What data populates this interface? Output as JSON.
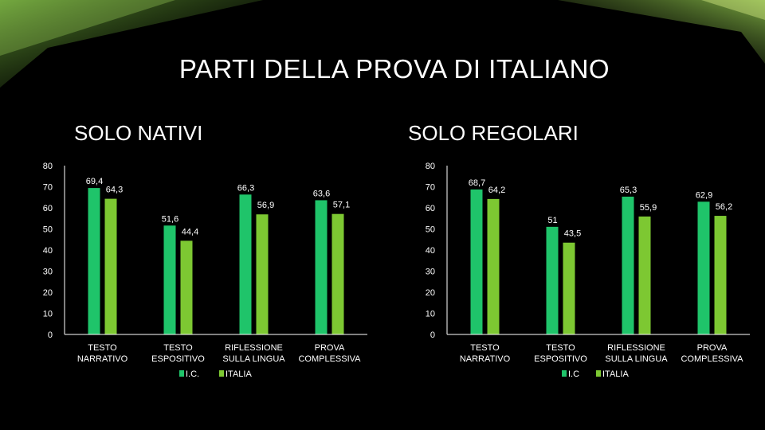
{
  "title": "PARTI DELLA PROVA DI ITALIANO",
  "colors": {
    "ic": "#1FC46A",
    "italia": "#7DC832",
    "background": "#000000"
  },
  "chart_data": [
    {
      "type": "bar",
      "title": "SOLO NATIVI",
      "categories": [
        [
          "TESTO",
          "NARRATIVO"
        ],
        [
          "TESTO",
          "ESPOSITIVO"
        ],
        [
          "RIFLESSIONE",
          "SULLA LINGUA"
        ],
        [
          "PROVA",
          "COMPLESSIVA"
        ]
      ],
      "series": [
        {
          "name": "I.C.",
          "values": [
            69.4,
            51.6,
            66.3,
            63.6
          ],
          "labels": [
            "69,4",
            "51,6",
            "66,3",
            "63,6"
          ]
        },
        {
          "name": "ITALIA",
          "values": [
            64.3,
            44.4,
            56.9,
            57.1
          ],
          "labels": [
            "64,3",
            "44,4",
            "56,9",
            "57,1"
          ]
        }
      ],
      "ylim": [
        0,
        80
      ],
      "yticks": [
        0,
        10,
        20,
        30,
        40,
        50,
        60,
        70,
        80
      ],
      "legend_position": "bottom",
      "grid": false
    },
    {
      "type": "bar",
      "title": "SOLO REGOLARI",
      "categories": [
        [
          "TESTO",
          "NARRATIVO"
        ],
        [
          "TESTO",
          "ESPOSITIVO"
        ],
        [
          "RIFLESSIONE",
          "SULLA LINGUA"
        ],
        [
          "PROVA",
          "COMPLESSIVA"
        ]
      ],
      "series": [
        {
          "name": "I.C",
          "values": [
            68.7,
            51,
            65.3,
            62.9
          ],
          "labels": [
            "68,7",
            "51",
            "65,3",
            "62,9"
          ]
        },
        {
          "name": "ITALIA",
          "values": [
            64.2,
            43.5,
            55.9,
            56.2
          ],
          "labels": [
            "64,2",
            "43,5",
            "55,9",
            "56,2"
          ]
        }
      ],
      "ylim": [
        0,
        80
      ],
      "yticks": [
        0,
        10,
        20,
        30,
        40,
        50,
        60,
        70,
        80
      ],
      "legend_position": "bottom",
      "grid": false
    }
  ]
}
